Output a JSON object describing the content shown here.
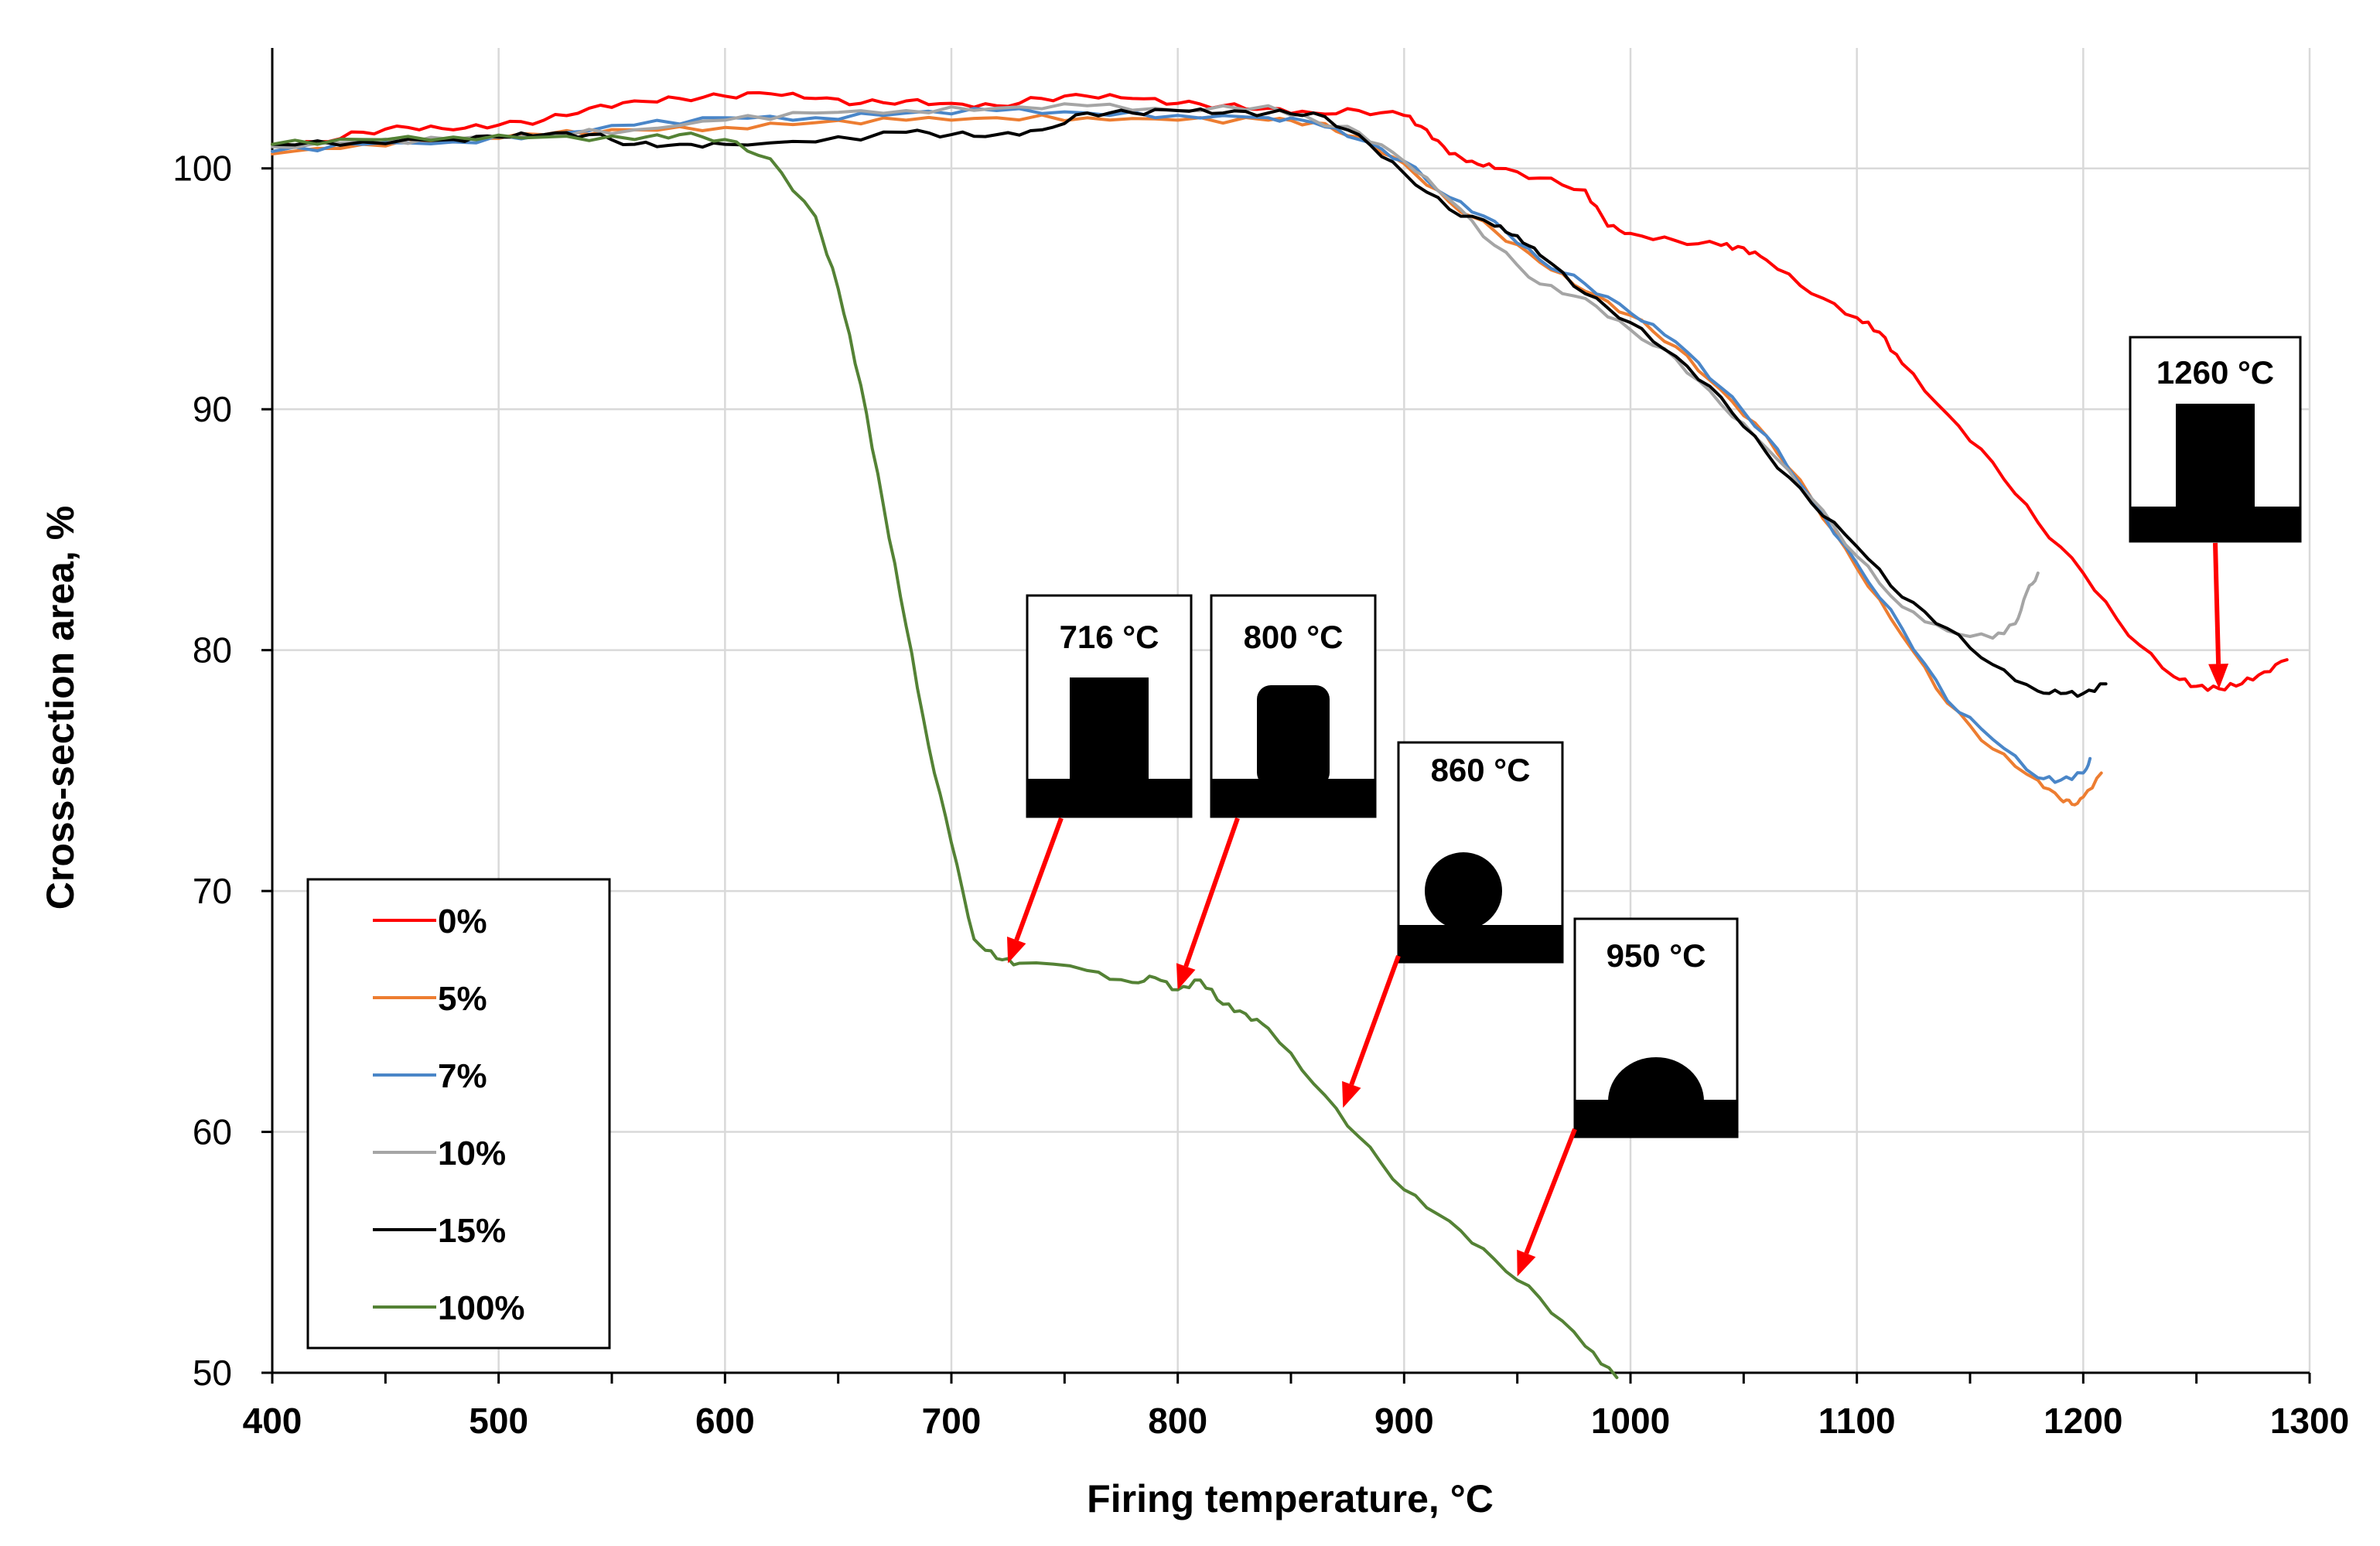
{
  "chart_data": {
    "type": "line",
    "title": "",
    "xlabel": "Firing temperature, °C",
    "ylabel": "Cross-section area, %",
    "xlim": [
      400,
      1300
    ],
    "ylim": [
      50,
      105
    ],
    "xticks": [
      "400",
      "500",
      "600",
      "700",
      "800",
      "900",
      "1000",
      "1100",
      "1200",
      "1300"
    ],
    "yticks": [
      "50",
      "60",
      "70",
      "80",
      "90",
      "100"
    ],
    "grid": true,
    "legend_position": "bottom-left",
    "series": [
      {
        "name": "0%",
        "color": "#ff0000",
        "x": [
          400,
          420,
          440,
          460,
          480,
          500,
          520,
          540,
          560,
          580,
          600,
          620,
          640,
          660,
          680,
          700,
          720,
          740,
          760,
          780,
          800,
          820,
          840,
          860,
          880,
          900,
          910,
          920,
          930,
          940,
          960,
          980,
          990,
          1000,
          1020,
          1040,
          1050,
          1060,
          1080,
          1100,
          1110,
          1120,
          1140,
          1160,
          1180,
          1200,
          1220,
          1240,
          1250,
          1260,
          1270,
          1280,
          1290
        ],
        "y": [
          101,
          101.1,
          101.5,
          101.7,
          101.6,
          101.8,
          102,
          102.5,
          102.8,
          102.9,
          103,
          103.1,
          102.9,
          102.7,
          102.8,
          102.7,
          102.6,
          102.9,
          103,
          102.9,
          102.7,
          102.6,
          102.5,
          102.3,
          102.4,
          102.2,
          101.6,
          100.6,
          100.3,
          100,
          99.6,
          99.1,
          97.6,
          97.3,
          97,
          96.8,
          96.7,
          96.2,
          94.8,
          93.8,
          93.2,
          91.9,
          89.8,
          87.8,
          85.3,
          83.2,
          80.6,
          78.9,
          78.5,
          78.4,
          78.6,
          79.1,
          79.6
        ]
      },
      {
        "name": "5%",
        "color": "#ed7d31",
        "x": [
          400,
          440,
          480,
          520,
          560,
          600,
          640,
          680,
          720,
          760,
          800,
          840,
          860,
          880,
          900,
          920,
          940,
          960,
          980,
          1000,
          1020,
          1040,
          1060,
          1080,
          1100,
          1120,
          1140,
          1160,
          1180,
          1190,
          1195,
          1200,
          1208
        ],
        "y": [
          100.6,
          101,
          101.2,
          101.4,
          101.6,
          101.7,
          101.9,
          102,
          102.1,
          102.1,
          102,
          102,
          101.9,
          101.3,
          100.2,
          98.6,
          97.4,
          96.1,
          94.9,
          93.9,
          92.6,
          90.8,
          88.9,
          86.3,
          83.4,
          80.6,
          77.8,
          75.9,
          74.6,
          73.8,
          73.6,
          73.9,
          74.9
        ]
      },
      {
        "name": "7%",
        "color": "#4a86c8",
        "x": [
          400,
          440,
          480,
          520,
          560,
          600,
          640,
          680,
          720,
          760,
          800,
          840,
          860,
          880,
          900,
          920,
          940,
          960,
          980,
          1000,
          1020,
          1040,
          1060,
          1080,
          1100,
          1120,
          1140,
          1160,
          1180,
          1190,
          1200,
          1203
        ],
        "y": [
          100.7,
          101,
          101.1,
          101.4,
          101.8,
          102.1,
          102.1,
          102.3,
          102.4,
          102.3,
          102.2,
          102.1,
          101.9,
          101.2,
          100.3,
          98.8,
          97.8,
          96.2,
          95.2,
          94,
          92.8,
          90.9,
          88.9,
          86.3,
          83.6,
          80.9,
          77.9,
          76.3,
          74.7,
          74.6,
          74.9,
          75.5
        ]
      },
      {
        "name": "10%",
        "color": "#a5a5a5",
        "x": [
          400,
          440,
          480,
          520,
          560,
          600,
          640,
          680,
          720,
          760,
          800,
          840,
          860,
          880,
          900,
          920,
          940,
          960,
          980,
          1000,
          1020,
          1040,
          1060,
          1080,
          1100,
          1120,
          1140,
          1160,
          1170,
          1175,
          1180
        ],
        "y": [
          100.9,
          101.1,
          101.2,
          101.4,
          101.6,
          102,
          102.3,
          102.4,
          102.5,
          102.6,
          102.4,
          102.6,
          102,
          101.5,
          100.3,
          98.7,
          96.8,
          95.2,
          94.6,
          93.3,
          92.1,
          90.2,
          88.4,
          86.3,
          83.9,
          81.8,
          80.8,
          80.5,
          81.1,
          82.4,
          83.2
        ]
      },
      {
        "name": "15%",
        "color": "#000000",
        "x": [
          400,
          440,
          480,
          500,
          520,
          540,
          560,
          580,
          600,
          640,
          680,
          700,
          720,
          740,
          760,
          780,
          800,
          820,
          840,
          860,
          880,
          900,
          920,
          940,
          950,
          960,
          980,
          1000,
          1020,
          1040,
          1060,
          1080,
          1100,
          1120,
          1140,
          1160,
          1180,
          1190,
          1200,
          1210
        ],
        "y": [
          101,
          101.1,
          101.2,
          101.3,
          101.4,
          101.4,
          101,
          101,
          101,
          101.1,
          101.5,
          101.4,
          101.4,
          101.6,
          102.3,
          102.3,
          102.4,
          102.3,
          102.3,
          102.3,
          101.4,
          99.8,
          98.3,
          97.6,
          97.2,
          96.4,
          94.8,
          93.6,
          92.2,
          90.5,
          88.2,
          86.1,
          84.3,
          82.2,
          80.9,
          79.4,
          78.3,
          78.2,
          78.2,
          78.6
        ]
      },
      {
        "name": "100%",
        "color": "#548235",
        "x": [
          400,
          440,
          480,
          520,
          560,
          580,
          600,
          620,
          640,
          650,
          660,
          670,
          680,
          690,
          700,
          710,
          720,
          730,
          760,
          780,
          790,
          800,
          810,
          820,
          830,
          840,
          860,
          880,
          900,
          920,
          940,
          960,
          980,
          994
        ],
        "y": [
          101,
          101.2,
          101.3,
          101.3,
          101.2,
          101.4,
          101.2,
          100.4,
          98,
          95,
          91,
          86,
          81,
          76,
          72,
          68,
          67.2,
          67,
          66.7,
          66.2,
          66.4,
          65.9,
          66.3,
          65.3,
          64.9,
          64.3,
          62,
          59.8,
          57.6,
          56.3,
          54.7,
          53.1,
          51.1,
          49.8
        ]
      }
    ],
    "insets": [
      {
        "label": "716 °C",
        "points_to": [
          725,
          67
        ],
        "shape": "column"
      },
      {
        "label": "800 °C",
        "points_to": [
          800,
          65.9
        ],
        "shape": "rounded-column"
      },
      {
        "label": "860 °C",
        "points_to": [
          873,
          61
        ],
        "shape": "sphere"
      },
      {
        "label": "950 °C",
        "points_to": [
          950,
          54
        ],
        "shape": "hemisphere"
      },
      {
        "label": "1260 °C",
        "points_to": [
          1260,
          78.4
        ],
        "shape": "column"
      }
    ],
    "annotation_color": "#ff0000"
  }
}
